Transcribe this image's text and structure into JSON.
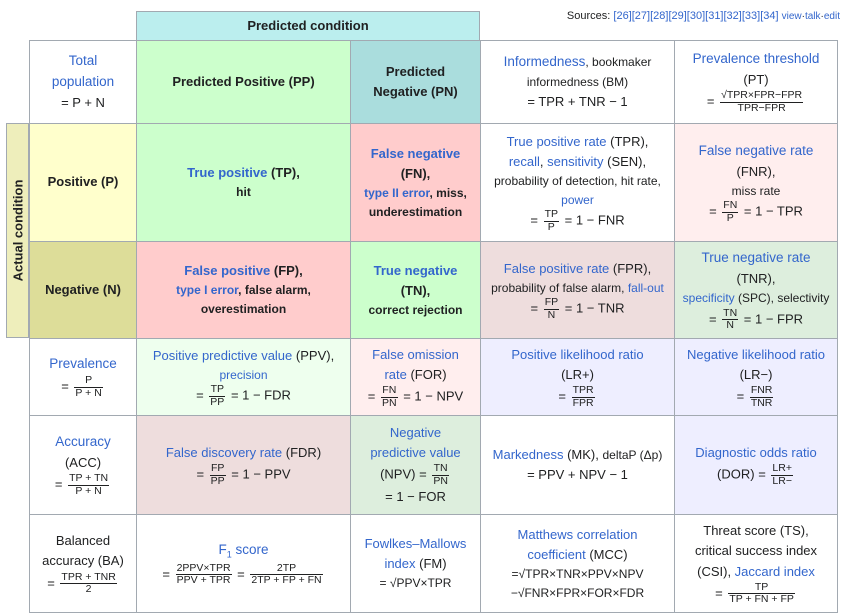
{
  "header": {
    "predicted_condition": "Predicted condition",
    "actual_condition": "Actual condition",
    "sources_label": "Sources:",
    "sources_refs": "[26][27][28][29][30][31][32][33][34]",
    "view": "view",
    "talk": "talk",
    "edit": "edit",
    "sep": "·"
  },
  "cells": {
    "total": {
      "line1": "Total",
      "line2": "population",
      "formula": "= P + N"
    },
    "pp": {
      "label": "Predicted Positive (PP)"
    },
    "pn": {
      "line1": "Predicted",
      "line2": "Negative (PN)"
    },
    "bm": {
      "link": "Informedness",
      "text1": ", bookmaker",
      "text2": "informedness (BM)",
      "formula": "= TPR + TNR − 1"
    },
    "pt": {
      "link": "Prevalence threshold",
      "abbr": "(PT)",
      "num": "√TPR×FPR−FPR",
      "den": "TPR−FPR"
    },
    "p": {
      "label": "Positive (P)"
    },
    "tp": {
      "link": "True positive",
      "abbr": "(TP),",
      "text": "hit"
    },
    "fn": {
      "link": "False negative",
      "abbr": "(FN),",
      "link2": "type II error",
      "text2": ", miss,",
      "text3": "underestimation"
    },
    "tpr": {
      "link1": "True positive rate",
      "abbr1": " (TPR),",
      "link2": "recall",
      "sep": ", ",
      "link3": "sensitivity",
      "abbr3": " (SEN),",
      "text4": "probability of detection, hit rate,",
      "link5": "power",
      "num": "TP",
      "den": "P",
      "rest": "= 1 − FNR"
    },
    "fnr": {
      "link": "False negative rate",
      "abbr": "(FNR),",
      "text": "miss rate",
      "num": "FN",
      "den": "P",
      "rest": "= 1 − TPR"
    },
    "n": {
      "label": "Negative (N)"
    },
    "fp": {
      "link": "False positive",
      "abbr": "(FP),",
      "link2": "type I error",
      "text2": ", false alarm,",
      "text3": "overestimation"
    },
    "tn": {
      "link": "True negative",
      "abbr": "(TN),",
      "text": "correct rejection"
    },
    "fpr": {
      "link": "False positive rate",
      "abbr": " (FPR),",
      "text2": "probability of false alarm, ",
      "link2": "fall-out",
      "num": "FP",
      "den": "N",
      "rest": "= 1 − TNR"
    },
    "tnr": {
      "link": "True negative rate",
      "abbr": "(TNR),",
      "link2": "specificity",
      "text2": " (SPC), selectivity",
      "num": "TN",
      "den": "N",
      "rest": "= 1 − FPR"
    },
    "prev": {
      "link": "Prevalence",
      "num": "P",
      "den": "P + N"
    },
    "ppv": {
      "link": "Positive predictive value",
      "abbr": " (PPV),",
      "link2": "precision",
      "num": "TP",
      "den": "PP",
      "rest": "= 1 − FDR"
    },
    "for": {
      "link1": "False omission",
      "link2": "rate",
      "abbr": " (FOR)",
      "num": "FN",
      "den": "PN",
      "rest": "= 1 − NPV"
    },
    "lrp": {
      "link": "Positive likelihood ratio",
      "abbr": "(LR+)",
      "num": "TPR",
      "den": "FPR"
    },
    "lrn": {
      "link": "Negative likelihood ratio",
      "abbr": "(LR−)",
      "num": "FNR",
      "den": "TNR"
    },
    "acc": {
      "link": "Accuracy",
      "abbr": "(ACC)",
      "num": "TP + TN",
      "den": "P + N"
    },
    "fdr": {
      "link": "False discovery rate",
      "abbr": " (FDR)",
      "num": "FP",
      "den": "PP",
      "rest": "= 1 − PPV"
    },
    "npv": {
      "link1": "Negative",
      "link2": "predictive value",
      "abbr": "(NPV) =",
      "num": "TN",
      "den": "PN",
      "rest": "= 1 − FOR"
    },
    "mk": {
      "link": "Markedness",
      "abbr": " (MK), ",
      "text2": "deltaP (Δp)",
      "formula": "= PPV + NPV − 1"
    },
    "dor": {
      "link": "Diagnostic odds ratio",
      "abbr": "(DOR) =",
      "num": "LR+",
      "den": "LR−"
    },
    "ba": {
      "line1": "Balanced",
      "line2": "accuracy (BA)",
      "num": "TPR + TNR",
      "den": "2"
    },
    "f1": {
      "link": "F",
      "sub": "1",
      "link_rest": " score",
      "num1": "2PPV×TPR",
      "den1": "PPV + TPR",
      "num2": "2TP",
      "den2": "2TP + FP + FN"
    },
    "fm": {
      "link1": "Fowlkes–Mallows",
      "link2": "index",
      "abbr": " (FM)",
      "formula": "= √PPV×TPR"
    },
    "mcc": {
      "link1": "Matthews correlation",
      "link2": "coefficient",
      "abbr": " (MCC)",
      "f1": "=√TPR×TNR×PPV×NPV",
      "f2": "−√FNR×FPR×FOR×FDR"
    },
    "ts": {
      "line1": "Threat score (TS),",
      "line2": "critical success index",
      "line3a": "(CSI), ",
      "link": "Jaccard index",
      "num": "TP",
      "den": "TP + FN + FP"
    }
  },
  "colors": {
    "predicted_header": "#bbeeee",
    "actual_header": "#eeeebb",
    "predicted_pos": "#ccffcc",
    "predicted_neg": "#aadddd",
    "actual_pos": "#ffffcc",
    "actual_neg": "#dddd99",
    "true": "#ccffcc",
    "false": "#ffcccc",
    "link": "#3366cc"
  }
}
